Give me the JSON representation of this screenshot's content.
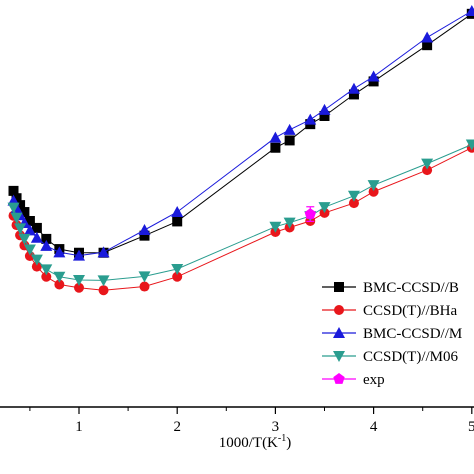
{
  "chart_data": {
    "type": "line",
    "xlabel": "1000/T(K",
    "xlabel_sup": "-1",
    "xlabel_suffix": ")",
    "xlim": [
      -0.65,
      5.0
    ],
    "ylim": [
      0,
      1
    ],
    "x_ticks": [
      1,
      2,
      3,
      4,
      5
    ],
    "x_tick_labels": [
      "1",
      "2",
      "3",
      "4",
      "5"
    ],
    "legend_position": "lower-right",
    "series": [
      {
        "name": "BMC-CCSD//B",
        "color": "#000000",
        "marker": "square",
        "x": [
          0.333,
          0.364,
          0.4,
          0.444,
          0.5,
          0.571,
          0.667,
          0.8,
          1.0,
          1.25,
          1.667,
          2.0,
          3.0,
          3.145,
          3.355,
          3.5,
          3.8,
          4.0,
          4.545,
          5.0
        ],
        "y": [
          0.531,
          0.513,
          0.496,
          0.479,
          0.457,
          0.44,
          0.413,
          0.388,
          0.379,
          0.379,
          0.421,
          0.456,
          0.637,
          0.655,
          0.695,
          0.715,
          0.768,
          0.8,
          0.889,
          0.966
        ]
      },
      {
        "name": "CCSD(T)//BHa",
        "color": "#e8161b",
        "marker": "circle",
        "x": [
          0.333,
          0.364,
          0.4,
          0.444,
          0.5,
          0.571,
          0.667,
          0.8,
          1.0,
          1.25,
          1.667,
          2.0,
          3.0,
          3.145,
          3.355,
          3.5,
          3.8,
          4.0,
          4.545,
          5.0
        ],
        "y": [
          0.47,
          0.447,
          0.422,
          0.397,
          0.371,
          0.345,
          0.32,
          0.301,
          0.293,
          0.287,
          0.296,
          0.32,
          0.43,
          0.441,
          0.457,
          0.477,
          0.501,
          0.529,
          0.582,
          0.637
        ]
      },
      {
        "name": "BMC-CCSD//M",
        "color": "#1a1adb",
        "marker": "triangle-up",
        "x": [
          0.333,
          0.364,
          0.4,
          0.444,
          0.5,
          0.571,
          0.667,
          0.8,
          1.0,
          1.25,
          1.667,
          2.0,
          3.0,
          3.145,
          3.355,
          3.5,
          3.8,
          4.0,
          4.545,
          5.0
        ],
        "y": [
          0.507,
          0.488,
          0.471,
          0.452,
          0.434,
          0.416,
          0.396,
          0.38,
          0.372,
          0.38,
          0.435,
          0.479,
          0.662,
          0.681,
          0.706,
          0.73,
          0.782,
          0.812,
          0.908,
          0.973
        ]
      },
      {
        "name": "CCSD(T)//M06",
        "color": "#2a9d8f",
        "marker": "triangle-down",
        "x": [
          0.333,
          0.364,
          0.4,
          0.444,
          0.5,
          0.571,
          0.667,
          0.8,
          1.0,
          1.25,
          1.667,
          2.0,
          3.0,
          3.145,
          3.355,
          3.5,
          3.8,
          4.0,
          4.545,
          5.0
        ],
        "y": [
          0.49,
          0.465,
          0.439,
          0.413,
          0.387,
          0.362,
          0.338,
          0.32,
          0.312,
          0.311,
          0.321,
          0.339,
          0.443,
          0.453,
          0.469,
          0.491,
          0.519,
          0.545,
          0.598,
          0.645
        ]
      },
      {
        "name": "exp",
        "color": "#ff00ff",
        "marker": "pentagon",
        "x": [
          3.355
        ],
        "y": [
          0.474
        ],
        "err": [
          0.018
        ]
      }
    ]
  }
}
